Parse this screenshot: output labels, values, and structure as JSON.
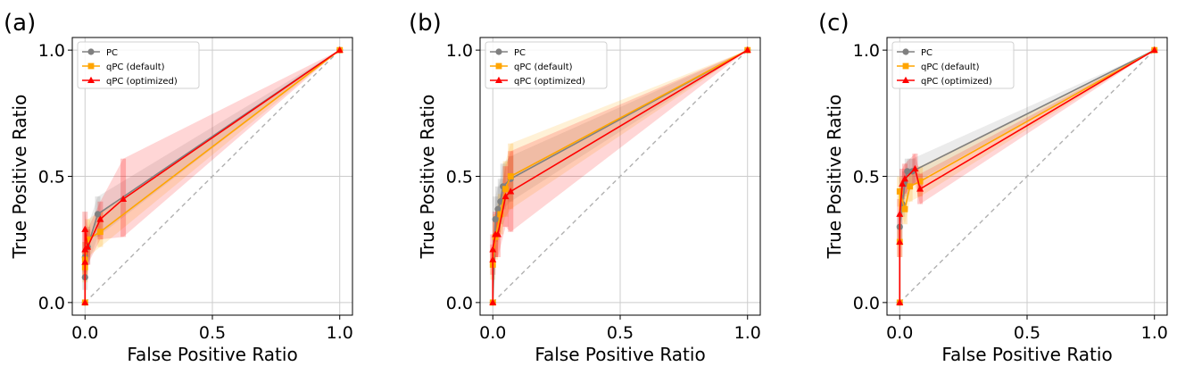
{
  "colors": {
    "pc": "#808080",
    "qpc_default": "#FFA500",
    "qpc_optimized": "#FF0000",
    "diagonal": "#b0b0b0",
    "grid": "#cccccc"
  },
  "chart_data": [
    {
      "type": "line",
      "panel_label": "(a)",
      "xlabel": "False Positive Ratio",
      "ylabel": "True Positive Ratio",
      "xlim": [
        -0.05,
        1.05
      ],
      "ylim": [
        -0.05,
        1.05
      ],
      "xticks": [
        "0.0",
        "0.5",
        "1.0"
      ],
      "yticks": [
        "0.0",
        "0.5",
        "1.0"
      ],
      "grid": true,
      "legend": "top-left",
      "legend_entries": [
        "PC",
        "qPC (default)",
        "qPC (optimized)"
      ],
      "series": [
        {
          "name": "PC",
          "x": [
            0,
            0,
            0,
            0.01,
            0.05,
            1.0
          ],
          "y": [
            0,
            0.1,
            0.18,
            0.22,
            0.35,
            1.0
          ],
          "lo": [
            0,
            0.05,
            0.12,
            0.15,
            0.26,
            1.0
          ],
          "hi": [
            0,
            0.15,
            0.24,
            0.3,
            0.42,
            1.0
          ]
        },
        {
          "name": "qPC (default)",
          "x": [
            0,
            0,
            0,
            0.01,
            0.06,
            1.0
          ],
          "y": [
            0,
            0.14,
            0.17,
            0.25,
            0.28,
            1.0
          ],
          "lo": [
            0,
            0.08,
            0.11,
            0.18,
            0.22,
            1.0
          ],
          "hi": [
            0,
            0.2,
            0.24,
            0.33,
            0.36,
            1.0
          ]
        },
        {
          "name": "qPC (optimized)",
          "x": [
            0,
            0,
            0,
            0,
            0.01,
            0.06,
            0.15,
            1.0
          ],
          "y": [
            0,
            0.16,
            0.21,
            0.29,
            0.22,
            0.33,
            0.41,
            1.0
          ],
          "lo": [
            0,
            0.1,
            0.14,
            0.22,
            0.15,
            0.25,
            0.26,
            1.0
          ],
          "hi": [
            0,
            0.22,
            0.28,
            0.36,
            0.29,
            0.4,
            0.57,
            1.0
          ]
        }
      ]
    },
    {
      "type": "line",
      "panel_label": "(b)",
      "xlabel": "False Positive Ratio",
      "ylabel": "True Positive Ratio",
      "xlim": [
        -0.05,
        1.05
      ],
      "ylim": [
        -0.05,
        1.05
      ],
      "xticks": [
        "0.0",
        "0.5",
        "1.0"
      ],
      "yticks": [
        "0.0",
        "0.5",
        "1.0"
      ],
      "grid": true,
      "legend": "top-left",
      "legend_entries": [
        "PC",
        "qPC (default)",
        "qPC (optimized)"
      ],
      "series": [
        {
          "name": "PC",
          "x": [
            0,
            0.01,
            0.02,
            0.03,
            0.04,
            0.07,
            1.0
          ],
          "y": [
            0,
            0.33,
            0.37,
            0.4,
            0.46,
            0.49,
            1.0
          ],
          "lo": [
            0,
            0.24,
            0.28,
            0.31,
            0.37,
            0.4,
            1.0
          ],
          "hi": [
            0,
            0.42,
            0.46,
            0.49,
            0.55,
            0.58,
            1.0
          ]
        },
        {
          "name": "qPC (default)",
          "x": [
            0,
            0,
            0.01,
            0.03,
            0.05,
            0.07,
            1.0
          ],
          "y": [
            0,
            0.15,
            0.26,
            0.35,
            0.45,
            0.5,
            1.0
          ],
          "lo": [
            0,
            0.09,
            0.17,
            0.27,
            0.34,
            0.37,
            1.0
          ],
          "hi": [
            0,
            0.21,
            0.35,
            0.43,
            0.56,
            0.63,
            1.0
          ]
        },
        {
          "name": "qPC (optimized)",
          "x": [
            0,
            0,
            0,
            0.01,
            0.02,
            0.05,
            0.07,
            1.0
          ],
          "y": [
            0,
            0.17,
            0.21,
            0.27,
            0.27,
            0.42,
            0.44,
            1.0
          ],
          "lo": [
            0,
            0.11,
            0.15,
            0.18,
            0.18,
            0.3,
            0.28,
            1.0
          ],
          "hi": [
            0,
            0.23,
            0.27,
            0.36,
            0.36,
            0.54,
            0.6,
            1.0
          ]
        }
      ]
    },
    {
      "type": "line",
      "panel_label": "(c)",
      "xlabel": "False Positive Ratio",
      "ylabel": "True Positive Ratio",
      "xlim": [
        -0.05,
        1.05
      ],
      "ylim": [
        -0.05,
        1.05
      ],
      "xticks": [
        "0.0",
        "0.5",
        "1.0"
      ],
      "yticks": [
        "0.0",
        "0.5",
        "1.0"
      ],
      "grid": true,
      "legend": "top-left",
      "legend_entries": [
        "PC",
        "qPC (default)",
        "qPC (optimized)"
      ],
      "series": [
        {
          "name": "PC",
          "x": [
            0,
            0,
            0.01,
            0.02,
            0.03,
            0.05,
            1.0
          ],
          "y": [
            0,
            0.3,
            0.39,
            0.47,
            0.52,
            0.52,
            1.0
          ],
          "lo": [
            0,
            0.25,
            0.34,
            0.42,
            0.47,
            0.47,
            1.0
          ],
          "hi": [
            0,
            0.35,
            0.44,
            0.52,
            0.57,
            0.57,
            1.0
          ]
        },
        {
          "name": "qPC (default)",
          "x": [
            0,
            0,
            0,
            0.02,
            0.04,
            0.08,
            1.0
          ],
          "y": [
            0,
            0.24,
            0.44,
            0.37,
            0.46,
            0.48,
            1.0
          ],
          "lo": [
            0,
            0.18,
            0.38,
            0.31,
            0.4,
            0.42,
            1.0
          ],
          "hi": [
            0,
            0.3,
            0.5,
            0.43,
            0.52,
            0.54,
            1.0
          ]
        },
        {
          "name": "qPC (optimized)",
          "x": [
            0,
            0,
            0,
            0.01,
            0.02,
            0.06,
            0.08,
            1.0
          ],
          "y": [
            0,
            0.24,
            0.35,
            0.47,
            0.49,
            0.53,
            0.45,
            1.0
          ],
          "lo": [
            0,
            0.18,
            0.29,
            0.41,
            0.43,
            0.47,
            0.39,
            1.0
          ],
          "hi": [
            0,
            0.3,
            0.41,
            0.53,
            0.55,
            0.59,
            0.51,
            1.0
          ]
        }
      ]
    }
  ]
}
